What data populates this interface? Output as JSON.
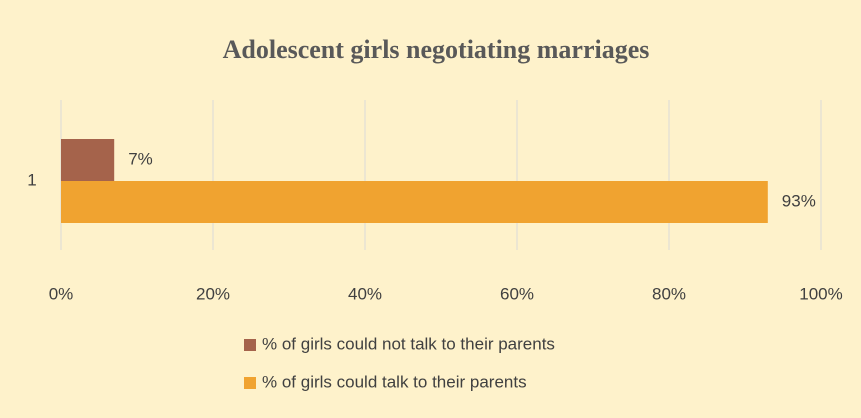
{
  "chart_data": {
    "type": "hbar",
    "title": "Adolescent girls negotiating marriages",
    "categories": [
      "1"
    ],
    "series": [
      {
        "name": "% of girls could not talk to their parents",
        "color": "#a5634b",
        "values": [
          7
        ],
        "value_labels": [
          "7%"
        ]
      },
      {
        "name": "% of girls could talk to their parents",
        "color": "#f0a330",
        "values": [
          93
        ],
        "value_labels": [
          "93%"
        ]
      }
    ],
    "xlim": [
      0,
      100
    ],
    "xticks": [
      {
        "value": 0,
        "label": "0%"
      },
      {
        "value": 20,
        "label": "20%"
      },
      {
        "value": 40,
        "label": "40%"
      },
      {
        "value": 60,
        "label": "60%"
      },
      {
        "value": 80,
        "label": "80%"
      },
      {
        "value": 100,
        "label": "100%"
      }
    ],
    "grid": true,
    "legend": "bottom"
  }
}
